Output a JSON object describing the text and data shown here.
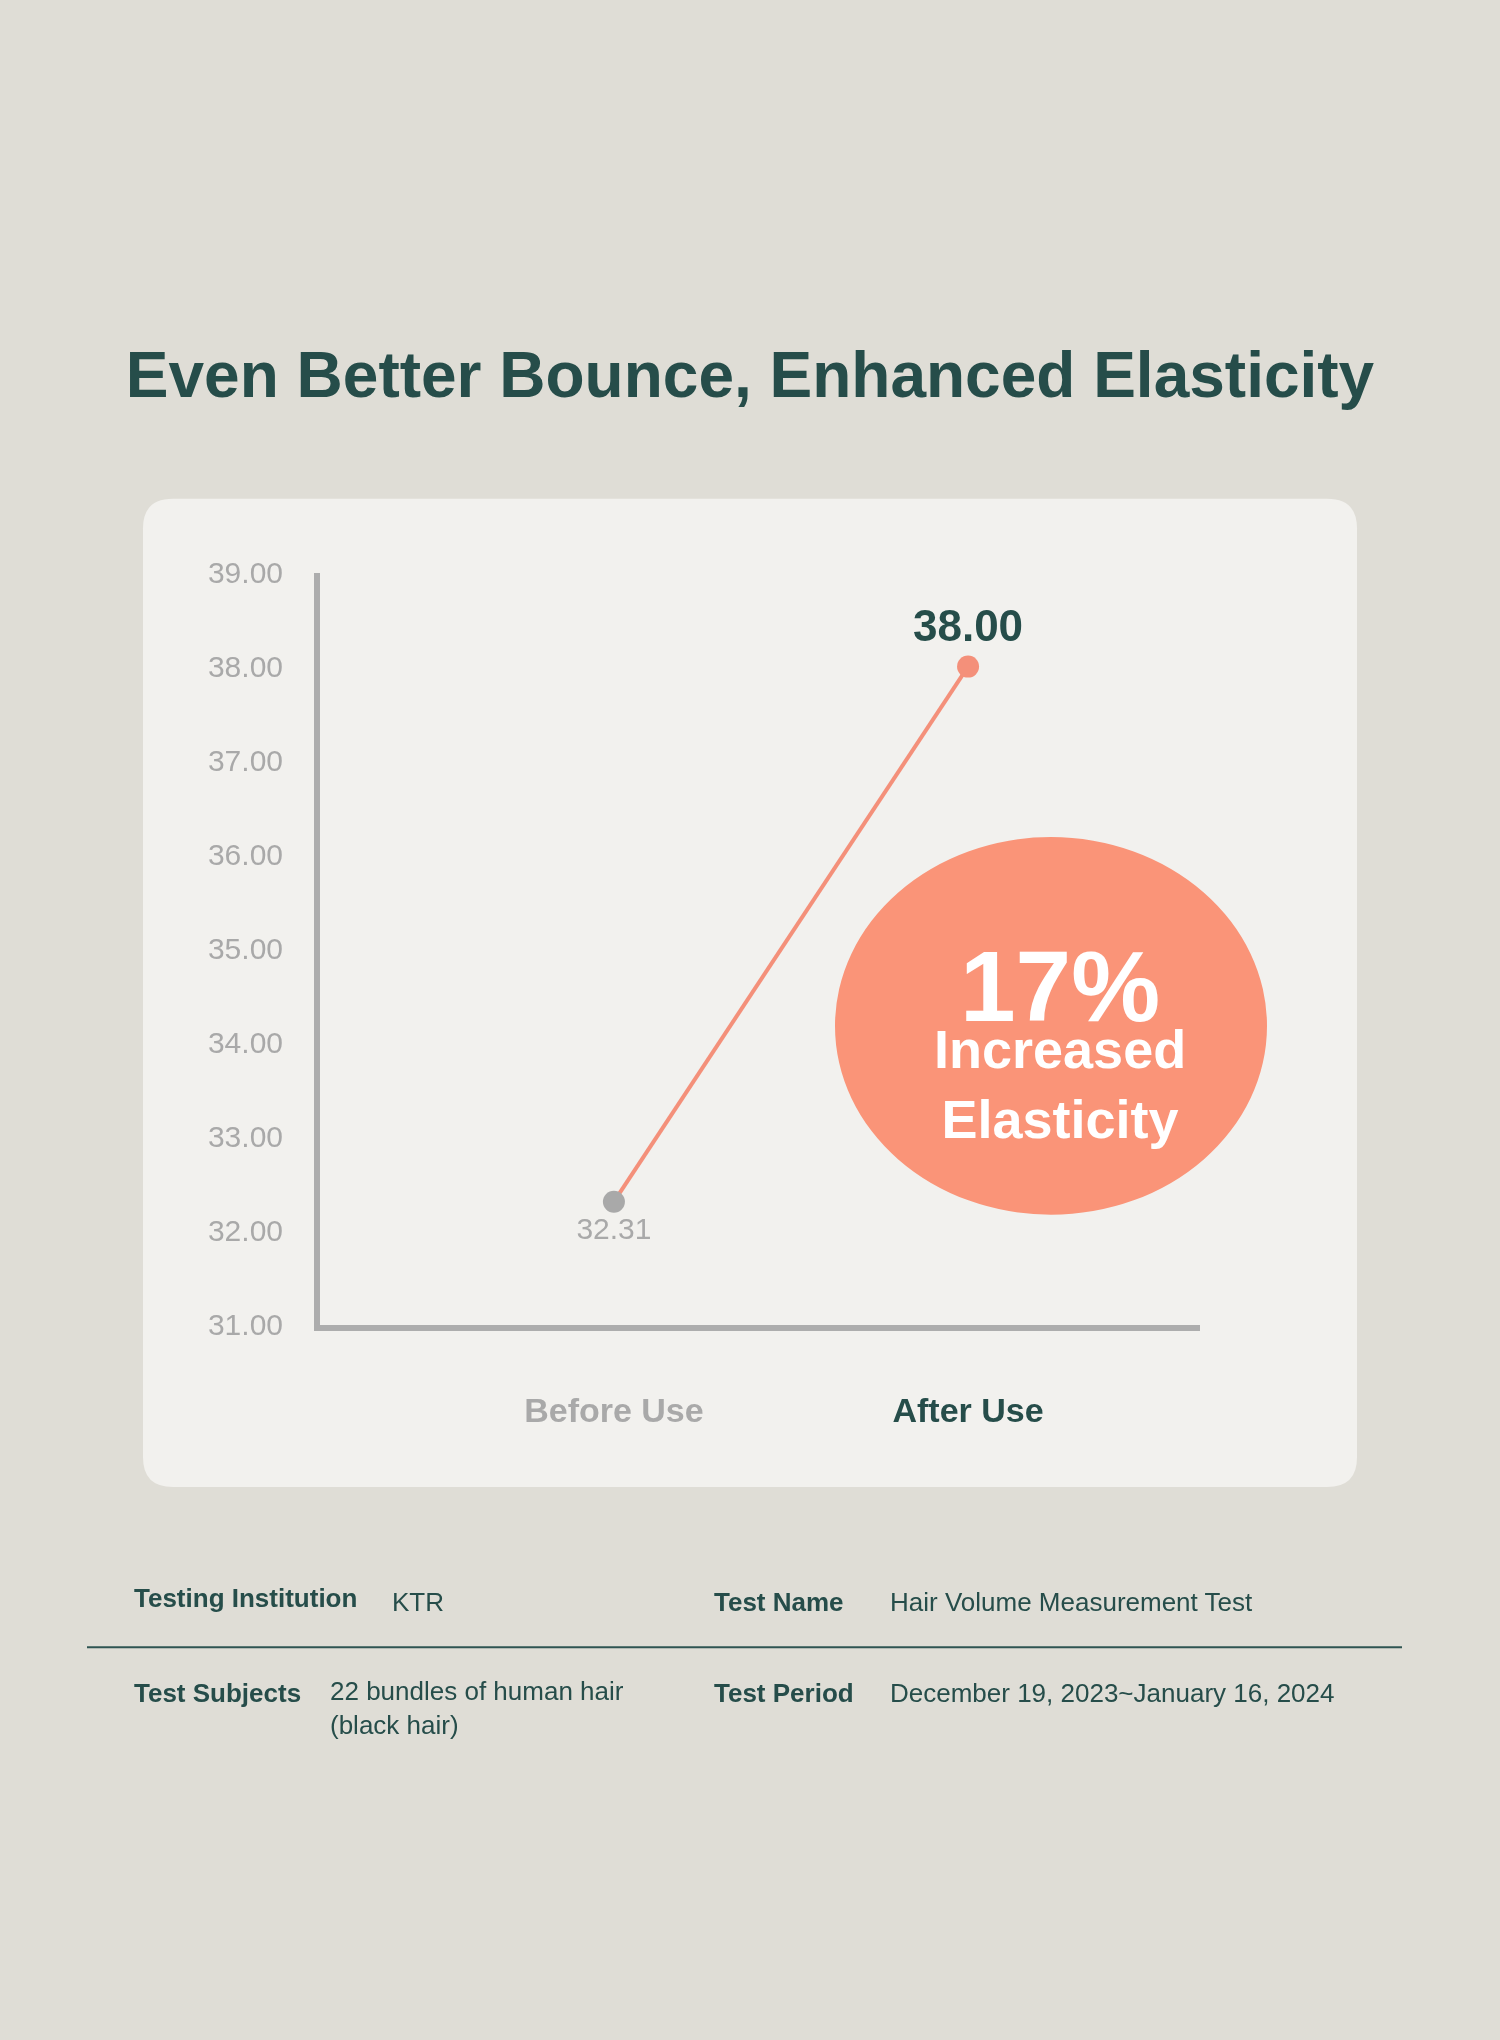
{
  "chart_data": {
    "type": "line",
    "title": "Even Better Bounce, Enhanced Elasticity",
    "categories": [
      "Before Use",
      "After Use"
    ],
    "series": [
      {
        "color": "#f4907a",
        "colors": [
          "#a9a9a9",
          "#f4907a"
        ],
        "values": [
          32.31,
          38.0
        ],
        "value_labels": [
          "32.31",
          "38.00"
        ]
      }
    ],
    "ylim": [
      31,
      39
    ],
    "yticks": [
      {
        "value": 31,
        "label": "31.00"
      },
      {
        "value": 32,
        "label": "32.00"
      },
      {
        "value": 33,
        "label": "33.00"
      },
      {
        "value": 34,
        "label": "34.00"
      },
      {
        "value": 35,
        "label": "35.00"
      },
      {
        "value": 36,
        "label": "36.00"
      },
      {
        "value": 37,
        "label": "37.00"
      },
      {
        "value": 38,
        "label": "38.00"
      },
      {
        "value": 39,
        "label": "39.00"
      }
    ],
    "grid": false,
    "marker": "circle",
    "line_style": "solid",
    "annotations": [
      "17%",
      "Increased\nElasticity",
      "Testing Institution",
      "KTR",
      "Test Name",
      "Hair Volume Measurement Test",
      "Test Subjects",
      "22 bundles of human hair\n(black hair)",
      "Test Period",
      "December 19, 2023~January 16, 2024"
    ]
  }
}
